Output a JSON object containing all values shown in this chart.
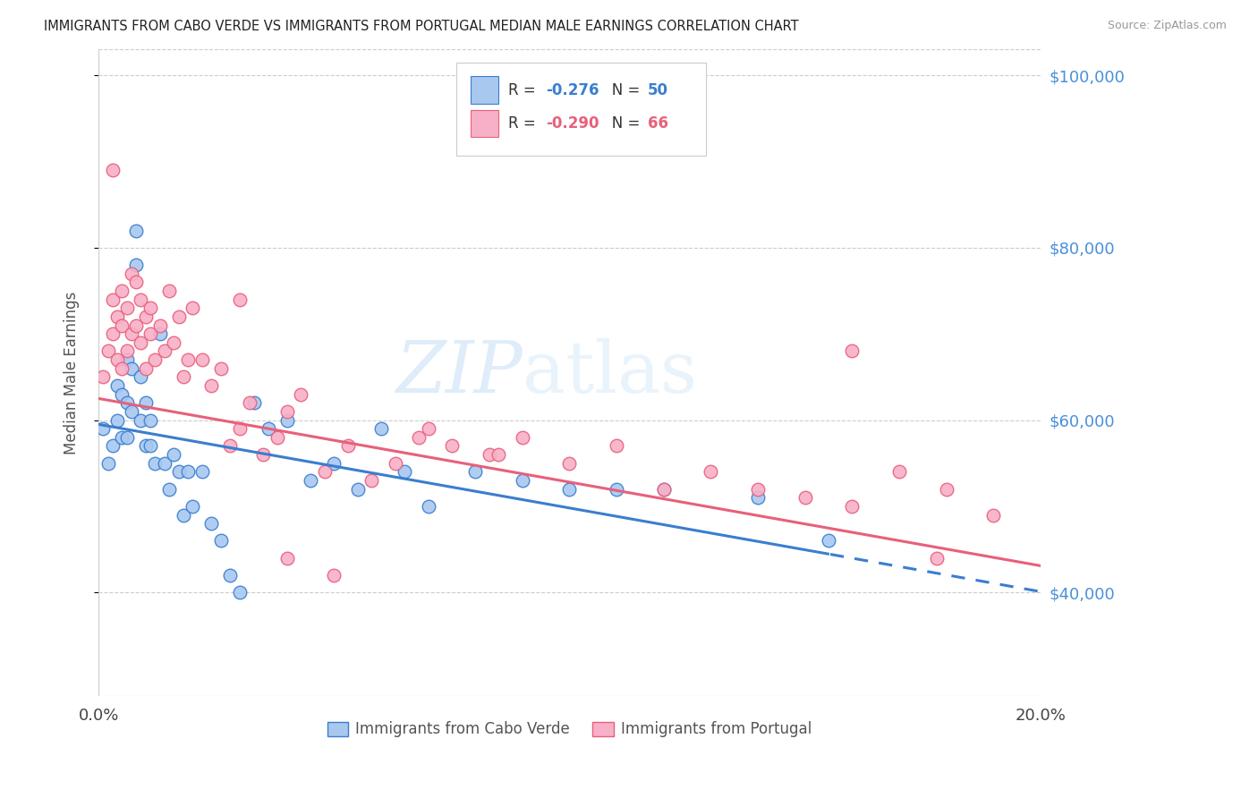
{
  "title": "IMMIGRANTS FROM CABO VERDE VS IMMIGRANTS FROM PORTUGAL MEDIAN MALE EARNINGS CORRELATION CHART",
  "source": "Source: ZipAtlas.com",
  "ylabel": "Median Male Earnings",
  "xlim": [
    0.0,
    0.2
  ],
  "ylim": [
    28000,
    103000
  ],
  "yticks": [
    40000,
    60000,
    80000,
    100000
  ],
  "xticks": [
    0.0,
    0.05,
    0.1,
    0.15,
    0.2
  ],
  "xtick_labels": [
    "0.0%",
    "",
    "",
    "",
    "20.0%"
  ],
  "right_ytick_labels": [
    "$40,000",
    "$60,000",
    "$80,000",
    "$100,000"
  ],
  "cabo_verde_color": "#a8c8f0",
  "portugal_color": "#f8b0c8",
  "trend_cabo_color": "#3a7ecf",
  "trend_portugal_color": "#e8607a",
  "cabo_verde_R": -0.276,
  "cabo_verde_N": 50,
  "portugal_R": -0.29,
  "portugal_N": 66,
  "watermark": "ZIPatlas",
  "cabo_verde_x": [
    0.001,
    0.002,
    0.003,
    0.004,
    0.004,
    0.005,
    0.005,
    0.006,
    0.006,
    0.006,
    0.007,
    0.007,
    0.008,
    0.008,
    0.009,
    0.009,
    0.01,
    0.01,
    0.011,
    0.011,
    0.012,
    0.013,
    0.014,
    0.015,
    0.016,
    0.017,
    0.018,
    0.019,
    0.02,
    0.022,
    0.024,
    0.026,
    0.028,
    0.03,
    0.033,
    0.036,
    0.04,
    0.045,
    0.05,
    0.055,
    0.06,
    0.065,
    0.07,
    0.08,
    0.09,
    0.1,
    0.11,
    0.12,
    0.14,
    0.155
  ],
  "cabo_verde_y": [
    59000,
    55000,
    57000,
    64000,
    60000,
    63000,
    58000,
    67000,
    62000,
    58000,
    66000,
    61000,
    82000,
    78000,
    65000,
    60000,
    62000,
    57000,
    60000,
    57000,
    55000,
    70000,
    55000,
    52000,
    56000,
    54000,
    49000,
    54000,
    50000,
    54000,
    48000,
    46000,
    42000,
    40000,
    62000,
    59000,
    60000,
    53000,
    55000,
    52000,
    59000,
    54000,
    50000,
    54000,
    53000,
    52000,
    52000,
    52000,
    51000,
    46000
  ],
  "portugal_x": [
    0.001,
    0.002,
    0.003,
    0.003,
    0.004,
    0.004,
    0.005,
    0.005,
    0.005,
    0.006,
    0.006,
    0.007,
    0.007,
    0.008,
    0.008,
    0.009,
    0.009,
    0.01,
    0.01,
    0.011,
    0.011,
    0.012,
    0.013,
    0.014,
    0.015,
    0.016,
    0.017,
    0.018,
    0.019,
    0.02,
    0.022,
    0.024,
    0.026,
    0.028,
    0.03,
    0.032,
    0.035,
    0.038,
    0.04,
    0.043,
    0.048,
    0.053,
    0.058,
    0.063,
    0.068,
    0.075,
    0.083,
    0.09,
    0.1,
    0.11,
    0.12,
    0.13,
    0.14,
    0.15,
    0.16,
    0.17,
    0.18,
    0.19,
    0.16,
    0.03,
    0.003,
    0.05,
    0.04,
    0.07,
    0.085,
    0.178
  ],
  "portugal_y": [
    65000,
    68000,
    74000,
    70000,
    72000,
    67000,
    75000,
    71000,
    66000,
    73000,
    68000,
    77000,
    70000,
    76000,
    71000,
    74000,
    69000,
    72000,
    66000,
    70000,
    73000,
    67000,
    71000,
    68000,
    75000,
    69000,
    72000,
    65000,
    67000,
    73000,
    67000,
    64000,
    66000,
    57000,
    59000,
    62000,
    56000,
    58000,
    61000,
    63000,
    54000,
    57000,
    53000,
    55000,
    58000,
    57000,
    56000,
    58000,
    55000,
    57000,
    52000,
    54000,
    52000,
    51000,
    50000,
    54000,
    52000,
    49000,
    68000,
    74000,
    89000,
    42000,
    44000,
    59000,
    56000,
    44000
  ],
  "trend_cabo_slope": -97000,
  "trend_cabo_intercept": 59500,
  "trend_port_slope": -97000,
  "trend_port_intercept": 62500
}
